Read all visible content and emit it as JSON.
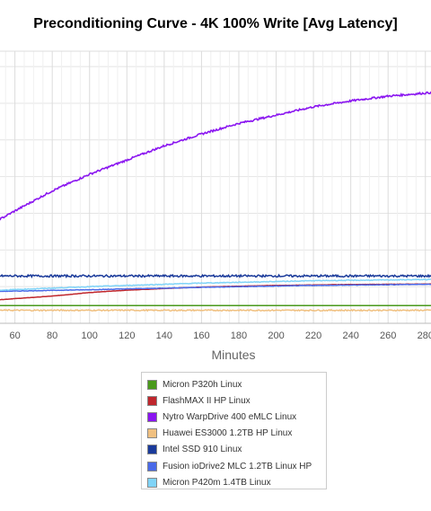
{
  "chart_data": {
    "type": "line",
    "title": "Preconditioning Curve - 4K 100% Write [Avg Latency]",
    "xlabel": "Minutes",
    "ylabel": "",
    "xlim": [
      52,
      283
    ],
    "ylim": [
      0,
      11.5
    ],
    "x_ticks": [
      60,
      80,
      100,
      120,
      140,
      160,
      180,
      200,
      220,
      240,
      260,
      280
    ],
    "grid": true,
    "legend_position": "bottom-center",
    "series": [
      {
        "name": "Micron P320h Linux",
        "color": "#4a9a1c",
        "x": [
          52,
          283
        ],
        "y": [
          0.75,
          0.75
        ],
        "noise": 0
      },
      {
        "name": "FlashMAX II HP Linux",
        "color": "#c0272d",
        "x": [
          52,
          80,
          100,
          120,
          140,
          160,
          180,
          200,
          220,
          240,
          260,
          283
        ],
        "y": [
          1.0,
          1.15,
          1.3,
          1.4,
          1.47,
          1.53,
          1.57,
          1.6,
          1.62,
          1.64,
          1.65,
          1.66
        ],
        "noise": 0.005
      },
      {
        "name": "Nytro WarpDrive 400 eMLC Linux",
        "color": "#8a15f0",
        "x": [
          52,
          60,
          80,
          100,
          120,
          140,
          160,
          180,
          200,
          220,
          240,
          260,
          283
        ],
        "y": [
          4.4,
          4.75,
          5.6,
          6.3,
          6.9,
          7.5,
          8.0,
          8.45,
          8.8,
          9.15,
          9.4,
          9.6,
          9.75
        ],
        "noise": 0.04
      },
      {
        "name": "Huawei ES3000 1.2TB HP Linux",
        "color": "#f0c080",
        "x": [
          52,
          283
        ],
        "y": [
          0.55,
          0.55
        ],
        "noise": 0.025
      },
      {
        "name": "Intel SSD 910 Linux",
        "color": "#1a3a9a",
        "x": [
          52,
          283
        ],
        "y": [
          2.0,
          2.0
        ],
        "noise": 0.045
      },
      {
        "name": "Fusion ioDrive2 MLC 1.2TB Linux HP",
        "color": "#4a6ae8",
        "x": [
          52,
          100,
          160,
          220,
          283
        ],
        "y": [
          1.35,
          1.42,
          1.52,
          1.6,
          1.65
        ],
        "noise": 0.01
      },
      {
        "name": "Micron P420m 1.4TB Linux",
        "color": "#80d4f8",
        "x": [
          52,
          100,
          160,
          220,
          283
        ],
        "y": [
          1.4,
          1.55,
          1.7,
          1.8,
          1.85
        ],
        "noise": 0.015
      }
    ]
  }
}
